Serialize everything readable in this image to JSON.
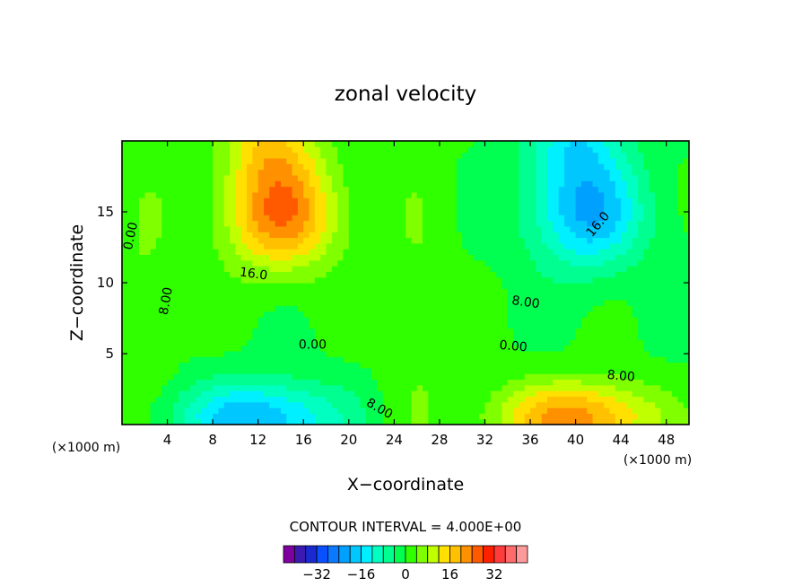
{
  "chart_data": {
    "type": "heatmap",
    "title": "zonal velocity",
    "xlabel": "X−coordinate",
    "ylabel": "Z−coordinate",
    "xunit_left": "(×1000 m)",
    "xunit_right": "(×1000 m)",
    "xlim": [
      0,
      50
    ],
    "ylim": [
      0,
      20
    ],
    "x_ticks": [
      4,
      8,
      12,
      16,
      20,
      24,
      28,
      32,
      36,
      40,
      44,
      48
    ],
    "x_tick_labels": [
      "4",
      "8",
      "12",
      "16",
      "20",
      "24",
      "28",
      "32",
      "36",
      "40",
      "44",
      "48"
    ],
    "y_ticks": [
      5,
      10,
      15
    ],
    "y_tick_labels": [
      "5",
      "10",
      "15"
    ],
    "contour_interval_label": "CONTOUR INTERVAL = 4.000E+00",
    "contour_interval": 4,
    "contour_labels": [
      {
        "text": "0.00",
        "x": 0.8,
        "y": 13.3,
        "rot": -78
      },
      {
        "text": "8.00",
        "x": 3.9,
        "y": 8.7,
        "rot": -80
      },
      {
        "text": "16.0",
        "x": 11.6,
        "y": 10.6,
        "rot": 8
      },
      {
        "text": "0.00",
        "x": 16.8,
        "y": 5.6,
        "rot": 0
      },
      {
        "text": "8.00",
        "x": 22.7,
        "y": 1.1,
        "rot": 30
      },
      {
        "text": "0.00",
        "x": 34.5,
        "y": 5.5,
        "rot": 5
      },
      {
        "text": "8.00",
        "x": 35.6,
        "y": 8.6,
        "rot": 8
      },
      {
        "text": "16.0",
        "x": 42.0,
        "y": 14.1,
        "rot": -50
      },
      {
        "text": "8.00",
        "x": 44.0,
        "y": 3.4,
        "rot": 5
      }
    ],
    "colorbar": {
      "colors": [
        "#7f00a0",
        "#3a1ab0",
        "#1a2ad0",
        "#0a50ff",
        "#0a78ff",
        "#00a0ff",
        "#00c8ff",
        "#00f0ff",
        "#00ffc0",
        "#00ff90",
        "#00ff50",
        "#30ff00",
        "#80ff00",
        "#c0ff00",
        "#ffe000",
        "#ffc000",
        "#ff9000",
        "#ff5a00",
        "#ff2000",
        "#ff3c3c",
        "#ff6a6a",
        "#ff9a9a"
      ],
      "tick_values": [
        -32,
        -16,
        0,
        16,
        32
      ],
      "tick_labels": [
        "−32",
        "−16",
        "0",
        "16",
        "32"
      ],
      "vmin": -44,
      "vmax": 44
    },
    "features": [
      {
        "x": 14,
        "y": 15,
        "amp": 24,
        "sx": 5,
        "sy": 4
      },
      {
        "x": 13,
        "y": 20,
        "amp": 12,
        "sx": 4,
        "sy": 3
      },
      {
        "x": 41,
        "y": 15,
        "amp": -20,
        "sx": 5,
        "sy": 4
      },
      {
        "x": 40,
        "y": 20,
        "amp": -12,
        "sx": 4,
        "sy": 3
      },
      {
        "x": 12,
        "y": 0.5,
        "amp": -20,
        "sx": 7,
        "sy": 2.5
      },
      {
        "x": 40,
        "y": 0.5,
        "amp": 22,
        "sx": 7,
        "sy": 2.5
      },
      {
        "x": 26,
        "y": 8,
        "amp": 4,
        "sx": 3,
        "sy": 12
      },
      {
        "x": 2,
        "y": 10,
        "amp": 4,
        "sx": 3,
        "sy": 10
      }
    ]
  }
}
